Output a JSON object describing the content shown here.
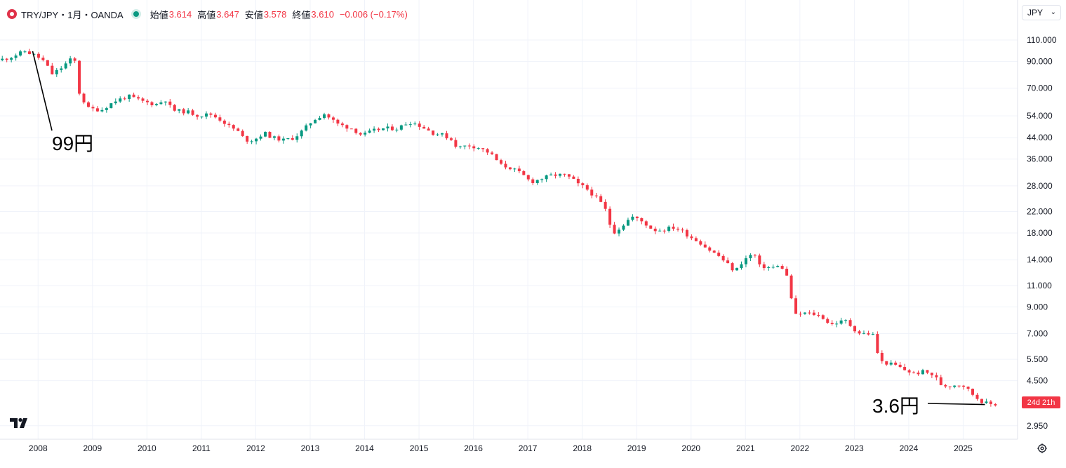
{
  "legend": {
    "symbol": "TRY/JPY・1月・OANDA",
    "open_label": "始値",
    "open": "3.614",
    "high_label": "高値",
    "high": "3.647",
    "low_label": "安値",
    "low": "3.578",
    "close_label": "終値",
    "close": "3.610",
    "change": "−0.006 (−0.17%)"
  },
  "currency_selector": "JPY",
  "countdown": "24d 21h",
  "icons": {
    "logo": "tradingview-logo-icon",
    "settings": "gear-icon",
    "symbol": "symbol-logo-icon",
    "market_status": "market-open-dot-icon",
    "currency_chevron": "chevron-down-icon"
  },
  "colors": {
    "up": "#089981",
    "down": "#f23645",
    "grid": "#f0f3fa"
  },
  "annotations": [
    {
      "text": "99円",
      "x": 2007.9,
      "y": 99
    },
    {
      "text": "3.6円",
      "x": 2025.4,
      "y": 3.6
    }
  ],
  "chart_data": {
    "type": "candlestick",
    "title": "",
    "interval": "1M",
    "yscale": "log",
    "ylim": [
      2.6,
      128
    ],
    "xlim": [
      2007.3,
      2026.0
    ],
    "grid": true,
    "y_ticks": [
      "110.000",
      "90.000",
      "70.000",
      "54.000",
      "44.000",
      "36.000",
      "28.000",
      "22.000",
      "18.000",
      "14.000",
      "11.000",
      "9.000",
      "7.000",
      "5.500",
      "4.500",
      "2.950"
    ],
    "x_ticks": [
      "2008",
      "2009",
      "2010",
      "2011",
      "2012",
      "2013",
      "2014",
      "2015",
      "2016",
      "2017",
      "2018",
      "2019",
      "2020",
      "2021",
      "2022",
      "2023",
      "2024",
      "2025"
    ],
    "anchors": [
      [
        2007.3,
        91
      ],
      [
        2007.5,
        93
      ],
      [
        2007.8,
        99
      ],
      [
        2008.0,
        95
      ],
      [
        2008.15,
        90
      ],
      [
        2008.3,
        80
      ],
      [
        2008.45,
        84
      ],
      [
        2008.55,
        88
      ],
      [
        2008.65,
        92
      ],
      [
        2008.72,
        90
      ],
      [
        2008.8,
        67
      ],
      [
        2008.95,
        58
      ],
      [
        2009.2,
        57
      ],
      [
        2009.45,
        62
      ],
      [
        2009.7,
        65
      ],
      [
        2009.95,
        62
      ],
      [
        2010.2,
        60
      ],
      [
        2010.4,
        63
      ],
      [
        2010.5,
        57
      ],
      [
        2010.8,
        56
      ],
      [
        2011.0,
        54
      ],
      [
        2011.2,
        55
      ],
      [
        2011.4,
        52
      ],
      [
        2011.55,
        49
      ],
      [
        2011.7,
        47
      ],
      [
        2011.85,
        43
      ],
      [
        2012.0,
        43
      ],
      [
        2012.2,
        46
      ],
      [
        2012.35,
        44
      ],
      [
        2012.55,
        43
      ],
      [
        2012.75,
        44
      ],
      [
        2012.9,
        47
      ],
      [
        2013.1,
        52
      ],
      [
        2013.3,
        55
      ],
      [
        2013.45,
        52
      ],
      [
        2013.55,
        50
      ],
      [
        2013.8,
        48
      ],
      [
        2014.0,
        45
      ],
      [
        2014.2,
        47
      ],
      [
        2014.4,
        48
      ],
      [
        2014.65,
        48
      ],
      [
        2014.85,
        51
      ],
      [
        2015.0,
        50
      ],
      [
        2015.15,
        48
      ],
      [
        2015.3,
        46
      ],
      [
        2015.5,
        45
      ],
      [
        2015.65,
        43
      ],
      [
        2015.75,
        40
      ],
      [
        2015.95,
        41
      ],
      [
        2016.15,
        40
      ],
      [
        2016.35,
        38
      ],
      [
        2016.55,
        34
      ],
      [
        2016.75,
        33
      ],
      [
        2016.95,
        31
      ],
      [
        2017.1,
        29
      ],
      [
        2017.3,
        30
      ],
      [
        2017.5,
        31
      ],
      [
        2017.7,
        31
      ],
      [
        2017.85,
        30
      ],
      [
        2017.95,
        28.5
      ],
      [
        2018.1,
        27.5
      ],
      [
        2018.3,
        25
      ],
      [
        2018.45,
        23
      ],
      [
        2018.6,
        18
      ],
      [
        2018.75,
        19
      ],
      [
        2018.85,
        20
      ],
      [
        2018.95,
        21
      ],
      [
        2019.15,
        20
      ],
      [
        2019.35,
        18.5
      ],
      [
        2019.5,
        18.5
      ],
      [
        2019.7,
        19
      ],
      [
        2019.85,
        18.5
      ],
      [
        2020.0,
        17.5
      ],
      [
        2020.2,
        16.5
      ],
      [
        2020.35,
        15.5
      ],
      [
        2020.55,
        14.5
      ],
      [
        2020.7,
        13.5
      ],
      [
        2020.85,
        12.5
      ],
      [
        2020.95,
        13.5
      ],
      [
        2021.1,
        14.5
      ],
      [
        2021.2,
        14.8
      ],
      [
        2021.3,
        13.2
      ],
      [
        2021.5,
        13
      ],
      [
        2021.7,
        13.2
      ],
      [
        2021.8,
        12
      ],
      [
        2021.95,
        8.3
      ],
      [
        2022.1,
        8.5
      ],
      [
        2022.3,
        8.4
      ],
      [
        2022.45,
        8.2
      ],
      [
        2022.6,
        7.6
      ],
      [
        2022.75,
        7.8
      ],
      [
        2022.9,
        7.9
      ],
      [
        2023.0,
        7.4
      ],
      [
        2023.15,
        7.0
      ],
      [
        2023.3,
        7.0
      ],
      [
        2023.4,
        6.9
      ],
      [
        2023.5,
        5.4
      ],
      [
        2023.65,
        5.3
      ],
      [
        2023.8,
        5.2
      ],
      [
        2023.95,
        5.0
      ],
      [
        2024.15,
        4.8
      ],
      [
        2024.3,
        4.9
      ],
      [
        2024.45,
        4.8
      ],
      [
        2024.55,
        4.6
      ],
      [
        2024.65,
        4.3
      ],
      [
        2024.8,
        4.3
      ],
      [
        2024.95,
        4.35
      ],
      [
        2025.05,
        4.3
      ],
      [
        2025.15,
        4.1
      ],
      [
        2025.25,
        3.9
      ],
      [
        2025.35,
        3.75
      ],
      [
        2025.45,
        3.65
      ],
      [
        2025.55,
        3.61
      ]
    ]
  }
}
